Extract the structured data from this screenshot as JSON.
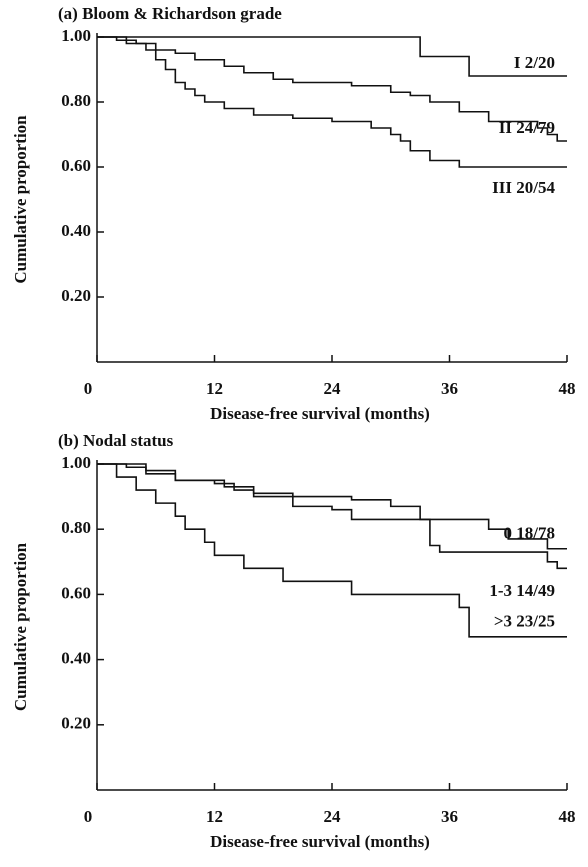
{
  "chart_data": [
    {
      "type": "step",
      "title": "(a) Bloom & Richardson grade",
      "x_label": "Disease-free survival (months)",
      "y_label": "Cumulative proportion",
      "xlim": [
        0,
        48
      ],
      "ylim": [
        0,
        1
      ],
      "xticks": [
        0,
        12,
        24,
        36,
        48
      ],
      "yticks": [
        {
          "value": 0.2,
          "label": "0.20"
        },
        {
          "value": 0.4,
          "label": "0.40"
        },
        {
          "value": 0.6,
          "label": "0.60"
        },
        {
          "value": 0.8,
          "label": "0.80"
        },
        {
          "value": 1,
          "label": "1.00"
        }
      ],
      "series": [
        {
          "name": "I 2/20",
          "color": "#111111",
          "x": [
            0,
            33,
            38,
            48
          ],
          "values": [
            1,
            0.94,
            0.88,
            0.88
          ]
        },
        {
          "name": "II 24/79",
          "color": "#111111",
          "x": [
            0,
            2,
            4,
            6,
            8,
            10,
            13,
            15,
            18,
            20,
            26,
            30,
            32,
            34,
            37,
            40,
            45,
            46,
            47,
            48
          ],
          "values": [
            1,
            0.99,
            0.98,
            0.96,
            0.95,
            0.93,
            0.91,
            0.89,
            0.87,
            0.86,
            0.85,
            0.83,
            0.82,
            0.8,
            0.77,
            0.74,
            0.72,
            0.7,
            0.68,
            0.68
          ]
        },
        {
          "name": "III 20/54",
          "color": "#111111",
          "x": [
            0,
            3,
            5,
            6,
            7,
            8,
            9,
            10,
            11,
            13,
            16,
            20,
            24,
            28,
            30,
            31,
            32,
            34,
            37,
            48
          ],
          "values": [
            1,
            0.98,
            0.96,
            0.93,
            0.9,
            0.86,
            0.84,
            0.82,
            0.8,
            0.78,
            0.76,
            0.75,
            0.74,
            0.72,
            0.7,
            0.68,
            0.65,
            0.62,
            0.6,
            0.6
          ]
        }
      ]
    },
    {
      "type": "step",
      "title": "(b) Nodal status",
      "x_label": "Disease-free survival (months)",
      "y_label": "Cumulative proportion",
      "xlim": [
        0,
        48
      ],
      "ylim": [
        0,
        1
      ],
      "xticks": [
        0,
        12,
        24,
        36,
        48
      ],
      "yticks": [
        {
          "value": 0.2,
          "label": "0.20"
        },
        {
          "value": 0.4,
          "label": "0.40"
        },
        {
          "value": 0.6,
          "label": "0.60"
        },
        {
          "value": 0.8,
          "label": "0.80"
        },
        {
          "value": 1,
          "label": "1.00"
        }
      ],
      "series": [
        {
          "name": "0 18/78",
          "color": "#111111",
          "x": [
            0,
            3,
            5,
            8,
            13,
            16,
            20,
            26,
            30,
            33,
            40,
            42,
            46,
            48
          ],
          "values": [
            1,
            0.99,
            0.97,
            0.95,
            0.93,
            0.91,
            0.9,
            0.89,
            0.87,
            0.83,
            0.8,
            0.77,
            0.74,
            0.74
          ]
        },
        {
          "name": "1-3 14/49",
          "color": "#111111",
          "x": [
            0,
            5,
            8,
            12,
            14,
            16,
            20,
            24,
            26,
            33,
            34,
            35,
            46,
            47,
            48
          ],
          "values": [
            1,
            0.98,
            0.95,
            0.94,
            0.92,
            0.9,
            0.87,
            0.86,
            0.83,
            0.83,
            0.75,
            0.73,
            0.7,
            0.68,
            0.68
          ]
        },
        {
          "name": ">3 23/25",
          "color": "#111111",
          "x": [
            0,
            2,
            4,
            6,
            8,
            9,
            11,
            12,
            15,
            19,
            26,
            37,
            38,
            48
          ],
          "values": [
            1,
            0.96,
            0.92,
            0.88,
            0.84,
            0.8,
            0.76,
            0.72,
            0.68,
            0.64,
            0.6,
            0.56,
            0.47,
            0.47
          ]
        }
      ]
    }
  ]
}
